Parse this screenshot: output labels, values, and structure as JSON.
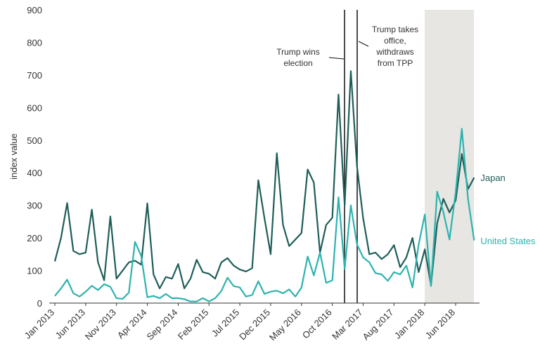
{
  "chart_data": {
    "type": "line",
    "y_label": "index value",
    "categories": [
      "Jan 2013",
      null,
      null,
      null,
      null,
      "Jun 2013",
      null,
      null,
      null,
      null,
      "Nov 2013",
      null,
      null,
      null,
      null,
      "Apr 2014",
      null,
      null,
      null,
      null,
      "Sep 2014",
      null,
      null,
      null,
      null,
      "Feb 2015",
      null,
      null,
      null,
      null,
      "Jul 2015",
      null,
      null,
      null,
      null,
      "Dec 2015",
      null,
      null,
      null,
      null,
      "May 2016",
      null,
      null,
      null,
      null,
      "Oct 2016",
      null,
      null,
      null,
      null,
      "Mar 2017",
      null,
      null,
      null,
      null,
      "Aug 2017",
      null,
      null,
      null,
      null,
      "Jan 2018",
      null,
      null,
      null,
      null,
      "Jun 2018",
      null,
      null,
      null
    ],
    "series": [
      {
        "name": "Japan",
        "color": "#1f5e58",
        "values": [
          128,
          200,
          307,
          160,
          150,
          155,
          287,
          125,
          70,
          266,
          75,
          100,
          125,
          130,
          118,
          306,
          88,
          45,
          80,
          75,
          120,
          45,
          75,
          133,
          95,
          90,
          75,
          125,
          138,
          115,
          103,
          97,
          107,
          377,
          260,
          150,
          460,
          240,
          175,
          195,
          215,
          410,
          370,
          155,
          240,
          262,
          640,
          300,
          712,
          420,
          260,
          150,
          155,
          135,
          150,
          178,
          110,
          140,
          200,
          95,
          165,
          55,
          245,
          320,
          278,
          315,
          458,
          350,
          385
        ]
      },
      {
        "name": "United States",
        "color": "#2db3ae",
        "values": [
          22,
          45,
          72,
          30,
          20,
          35,
          53,
          40,
          58,
          50,
          15,
          13,
          32,
          188,
          145,
          18,
          22,
          15,
          28,
          15,
          15,
          12,
          5,
          5,
          15,
          5,
          15,
          37,
          78,
          52,
          48,
          20,
          25,
          67,
          28,
          35,
          38,
          30,
          42,
          20,
          48,
          143,
          85,
          155,
          62,
          70,
          325,
          105,
          300,
          180,
          140,
          125,
          92,
          88,
          68,
          95,
          88,
          115,
          48,
          180,
          272,
          52,
          342,
          280,
          195,
          340,
          535,
          320,
          192
        ]
      }
    ],
    "annotations": [
      "Trump wins election",
      "Trump takes office, withdraws from TPP"
    ],
    "ylim": [
      0,
      900
    ],
    "yticks": [
      0,
      100,
      200,
      300,
      400,
      500,
      600,
      700,
      800,
      900
    ],
    "grid": false
  }
}
